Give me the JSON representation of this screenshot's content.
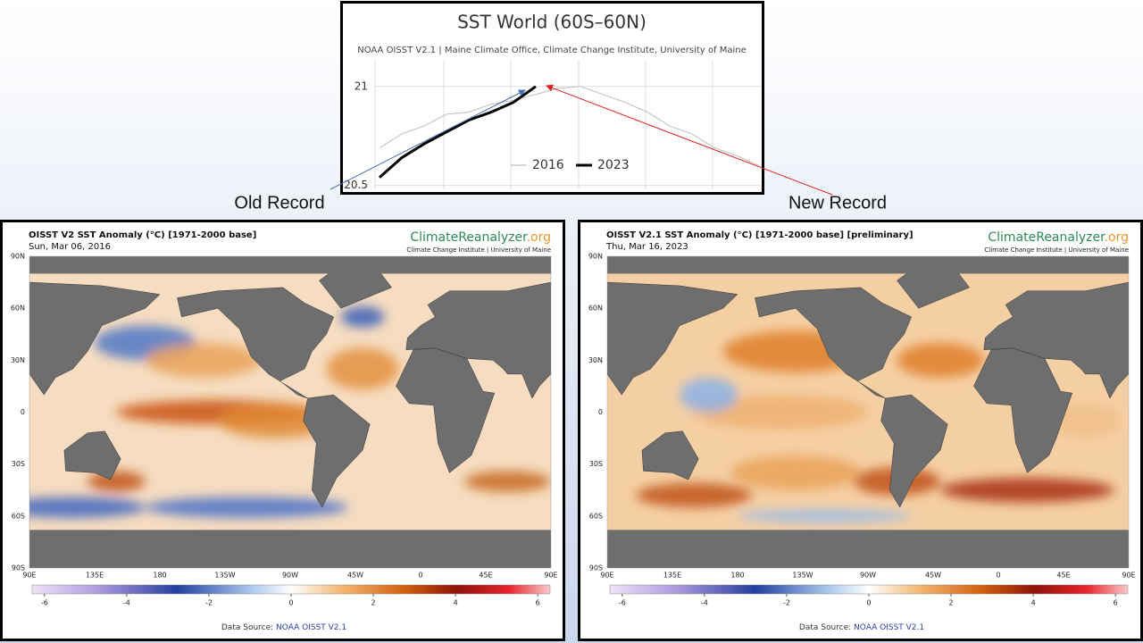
{
  "chart_data": {
    "type": "line",
    "title": "SST World (60S–60N)",
    "subtitle": "NOAA OISST V2.1 | Maine Climate Office, Climate Change Institute, University of Maine",
    "ylim": [
      20.48,
      21.13
    ],
    "yticks": [
      20.5,
      21
    ],
    "grid": true,
    "series": [
      {
        "name": "2016",
        "color": "#c8c8c8",
        "values": [
          20.69,
          20.76,
          20.8,
          20.86,
          20.87,
          20.91,
          20.93,
          20.96,
          20.99,
          21.0,
          20.96,
          20.92,
          20.87,
          20.8,
          20.76,
          20.69,
          20.65,
          20.6
        ]
      },
      {
        "name": "2023",
        "color": "#000000",
        "values": [
          20.54,
          20.64,
          20.71,
          20.77,
          20.83,
          20.87,
          20.92,
          21.0,
          null,
          null,
          null,
          null,
          null,
          null,
          null,
          null,
          null,
          null
        ]
      }
    ],
    "annotations": [
      "Old Record",
      "New Record"
    ]
  },
  "maps": [
    {
      "title": "OISST V2 SST Anomaly (°C) [1971-2000 base]",
      "date": "Sun, Mar 06, 2016",
      "brand": "ClimateReanalyzer",
      "brand_suffix": ".org",
      "institute": "Climate Change Institute | University of Maine",
      "lat_labels": [
        "90N",
        "60N",
        "30N",
        "0",
        "30S",
        "60S",
        "90S"
      ],
      "lon_labels": [
        "90E",
        "135E",
        "180",
        "135W",
        "90W",
        "45W",
        "0",
        "45E",
        "90E"
      ],
      "colorbar_range": [
        -6.3,
        6.3
      ],
      "colorbar_ticks": [
        -6,
        -4,
        -2,
        0,
        2,
        4,
        6
      ],
      "source_label": "Data Source: ",
      "source": "NOAA OISST V2.1"
    },
    {
      "title": "OISST V2.1 SST Anomaly (°C) [1971-2000 base] [preliminary]",
      "date": "Thu, Mar 16, 2023",
      "brand": "ClimateReanalyzer",
      "brand_suffix": ".org",
      "institute": "Climate Change Institute | University of Maine",
      "lat_labels": [
        "90N",
        "60N",
        "30N",
        "0",
        "30S",
        "60S",
        "90S"
      ],
      "lon_labels": [
        "90E",
        "135E",
        "180",
        "135W",
        "90W",
        "45W",
        "0",
        "45E",
        "90E"
      ],
      "colorbar_range": [
        -6.3,
        6.3
      ],
      "colorbar_ticks": [
        -6,
        -4,
        -2,
        0,
        2,
        4,
        6
      ],
      "source_label": "Data Source: ",
      "source": "NOAA OISST V2.1"
    }
  ]
}
